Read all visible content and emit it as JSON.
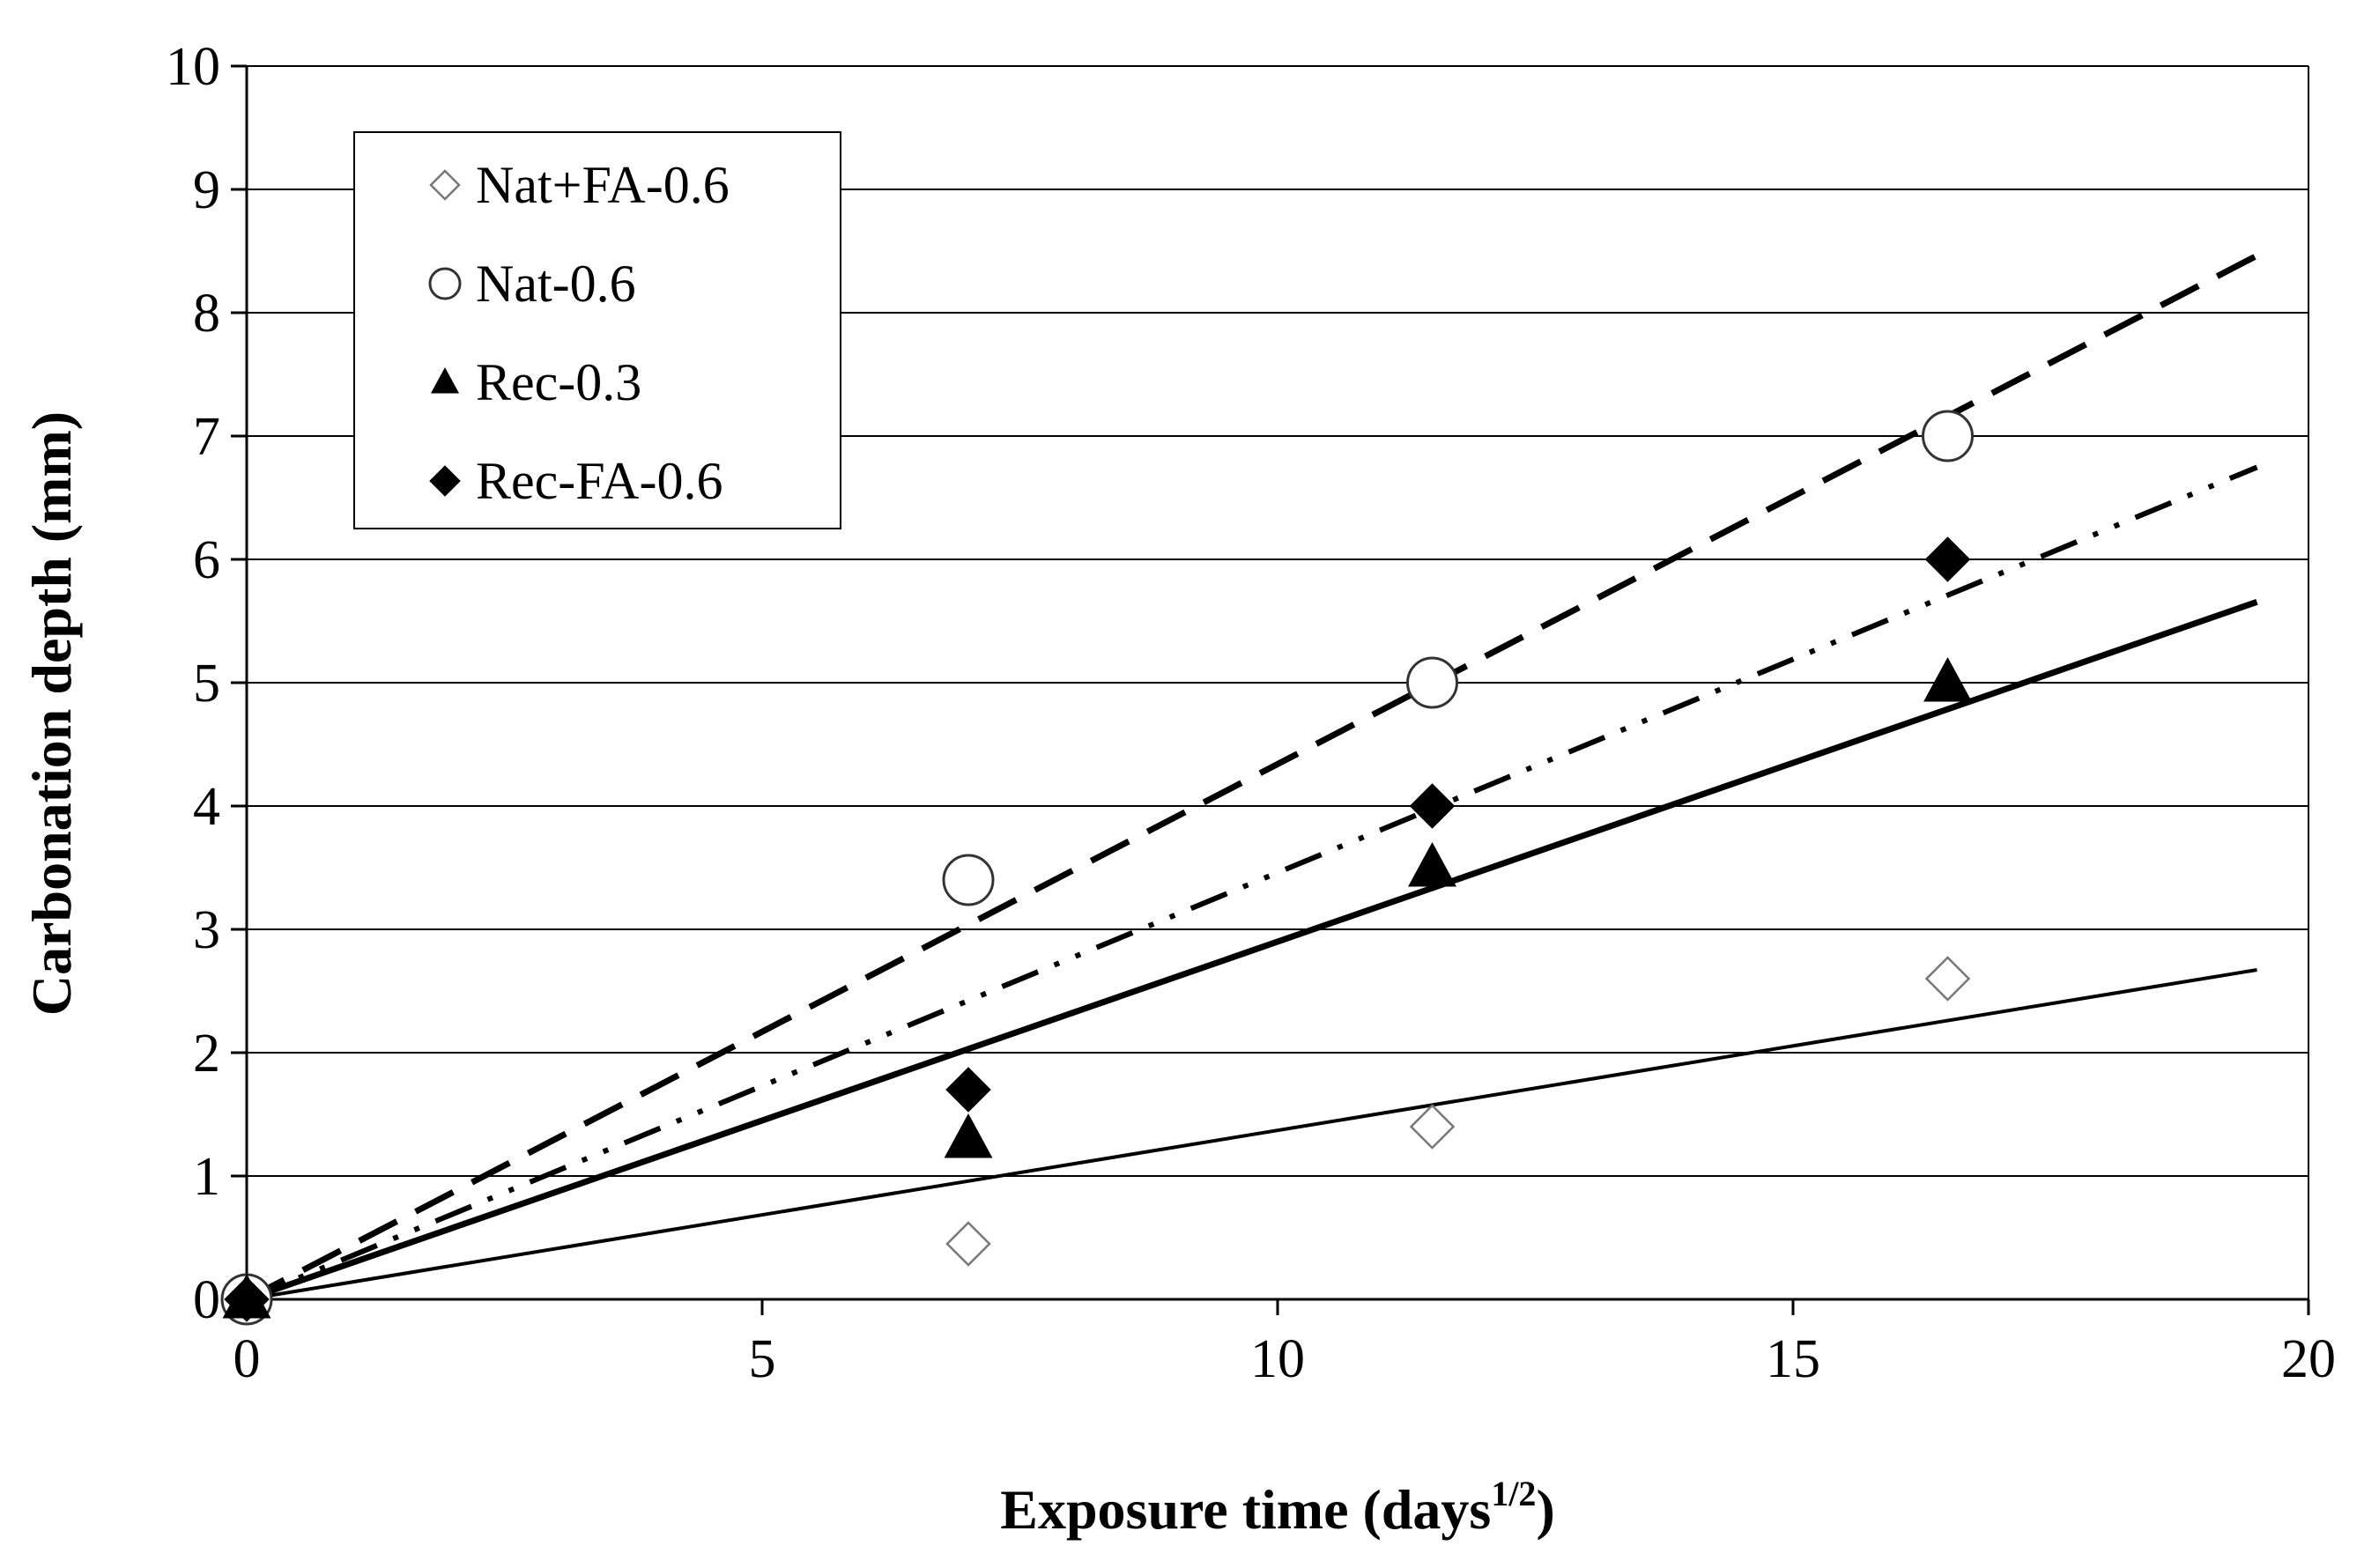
{
  "chart_data": {
    "type": "scatter",
    "xlabel": "Exposure time (days",
    "xlabel_sup": "1/2",
    "xlabel_end": ")",
    "ylabel": "Carbonation depth (mm)",
    "xlim": [
      0,
      20
    ],
    "ylim": [
      0,
      10
    ],
    "x_ticks": [
      0,
      5,
      10,
      15,
      20
    ],
    "y_ticks": [
      0,
      1,
      2,
      3,
      4,
      5,
      6,
      7,
      8,
      9,
      10
    ],
    "grid": "horizontal",
    "legend_position": "top-left",
    "series": [
      {
        "name": "Nat+FA-0.6",
        "marker": "diamond-open",
        "x": [
          0,
          7,
          11.5,
          16.5
        ],
        "y": [
          0,
          0.45,
          1.4,
          2.6
        ],
        "fit_slope": 0.137,
        "fit_style": "solid-thin"
      },
      {
        "name": "Nat-0.6",
        "marker": "circle-open",
        "x": [
          0,
          7,
          11.5,
          16.5
        ],
        "y": [
          0,
          3.4,
          5.0,
          7.0
        ],
        "fit_slope": 0.434,
        "fit_style": "dashed"
      },
      {
        "name": "Rec-0.3",
        "marker": "triangle-filled",
        "x": [
          0,
          7,
          11.5,
          16.5
        ],
        "y": [
          0,
          1.3,
          3.5,
          5.0
        ],
        "fit_slope": 0.29,
        "fit_style": "solid-thick"
      },
      {
        "name": "Rec-FA-0.6",
        "marker": "diamond-filled",
        "x": [
          0,
          7,
          11.5,
          16.5
        ],
        "y": [
          0,
          1.7,
          4.0,
          6.0
        ],
        "fit_slope": 0.346,
        "fit_style": "dash-dot-dot"
      }
    ],
    "fit_x_max": 19.5
  }
}
